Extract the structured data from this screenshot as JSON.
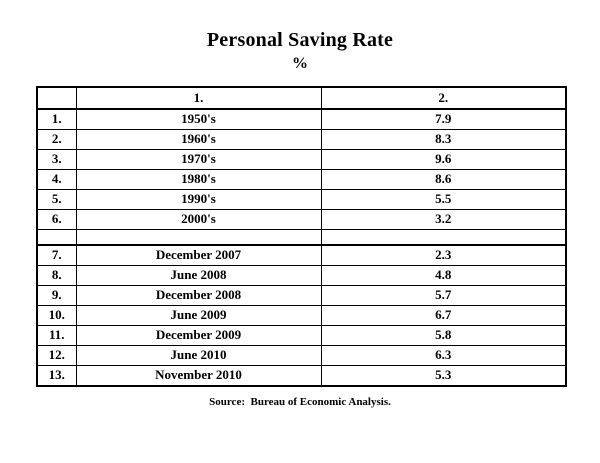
{
  "title": "Personal Saving Rate",
  "subtitle": "%",
  "source_note": "Source:  Bureau of Economic Analysis.",
  "colors": {
    "background": "#ffffff",
    "text": "#000000",
    "border": "#000000"
  },
  "table": {
    "headers": [
      "",
      "1.",
      "2."
    ],
    "rows": [
      {
        "num": "1.",
        "label": "1950's",
        "value": "7.9"
      },
      {
        "num": "2.",
        "label": "1960's",
        "value": "8.3"
      },
      {
        "num": "3.",
        "label": "1970's",
        "value": "9.6"
      },
      {
        "num": "4.",
        "label": "1980's",
        "value": "8.6"
      },
      {
        "num": "5.",
        "label": "1990's",
        "value": "5.5"
      },
      {
        "num": "6.",
        "label": "2000's",
        "value": "3.2"
      },
      {
        "num": "",
        "label": "",
        "value": ""
      },
      {
        "num": "7.",
        "label": "December 2007",
        "value": "2.3"
      },
      {
        "num": "8.",
        "label": "June 2008",
        "value": "4.8"
      },
      {
        "num": "9.",
        "label": "December 2008",
        "value": "5.7"
      },
      {
        "num": "10.",
        "label": "June 2009",
        "value": "6.7"
      },
      {
        "num": "11.",
        "label": "December 2009",
        "value": "5.8"
      },
      {
        "num": "12.",
        "label": "June 2010",
        "value": "6.3"
      },
      {
        "num": "13.",
        "label": "November 2010",
        "value": "5.3"
      }
    ]
  },
  "chart_data": {
    "type": "table",
    "title": "Personal Saving Rate",
    "unit": "%",
    "columns": [
      "",
      "1.",
      "2."
    ],
    "categories": [
      "1950's",
      "1960's",
      "1970's",
      "1980's",
      "1990's",
      "2000's",
      "December 2007",
      "June 2008",
      "December 2008",
      "June 2009",
      "December 2009",
      "June 2010",
      "November 2010"
    ],
    "values": [
      7.9,
      8.3,
      9.6,
      8.6,
      5.5,
      3.2,
      2.3,
      4.8,
      5.7,
      6.7,
      5.8,
      6.3,
      5.3
    ],
    "source": "Bureau of Economic Analysis"
  }
}
